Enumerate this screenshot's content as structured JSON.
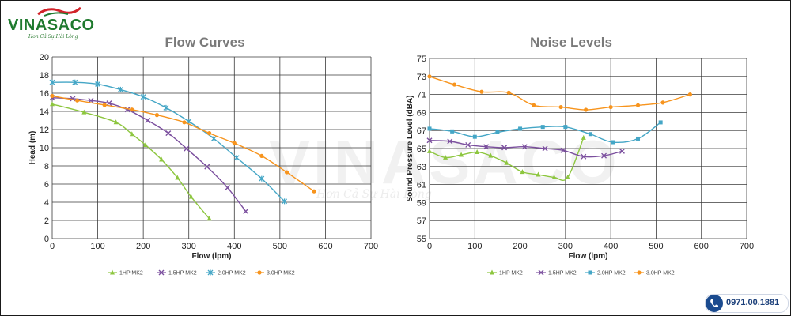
{
  "brand": {
    "name": "VINASACO",
    "slogan": "Hơn Cả Sự Hài Lòng",
    "phone": "0971.00.1881",
    "colors": {
      "green": "#1f7a2e",
      "red": "#d2232a",
      "navy": "#1b4b8f"
    }
  },
  "watermark": {
    "text": "VINASACO",
    "slogan": "Hơn Cả Sự Hài Lòng"
  },
  "chart_data": [
    {
      "type": "line",
      "title": "Flow Curves",
      "xlabel": "Flow (lpm)",
      "ylabel": "Head (m)",
      "xlim": [
        0,
        700
      ],
      "ylim": [
        0,
        20
      ],
      "xticks": [
        0,
        100,
        200,
        300,
        400,
        500,
        600,
        700
      ],
      "yticks": [
        0,
        2,
        4,
        6,
        8,
        10,
        12,
        14,
        16,
        18,
        20
      ],
      "grid": true,
      "legend_position": "bottom",
      "series": [
        {
          "name": "1HP MK2",
          "color": "#8dc63f",
          "marker": "triangle",
          "x": [
            0,
            70,
            140,
            175,
            205,
            240,
            275,
            305,
            345
          ],
          "y": [
            14.8,
            13.9,
            12.8,
            11.5,
            10.3,
            8.7,
            6.7,
            4.6,
            2.2
          ]
        },
        {
          "name": "1.5HP MK2",
          "color": "#7b4f9e",
          "marker": "x",
          "x": [
            0,
            45,
            85,
            125,
            165,
            210,
            255,
            295,
            340,
            385,
            425
          ],
          "y": [
            15.5,
            15.4,
            15.2,
            14.9,
            14.2,
            13.0,
            11.6,
            9.9,
            7.9,
            5.6,
            3.0
          ]
        },
        {
          "name": "2.0HP MK2",
          "color": "#44a6c6",
          "marker": "asterisk",
          "x": [
            0,
            50,
            100,
            150,
            200,
            250,
            300,
            355,
            405,
            460,
            510
          ],
          "y": [
            17.2,
            17.2,
            17.0,
            16.4,
            15.6,
            14.4,
            12.9,
            11.0,
            8.9,
            6.6,
            4.1
          ]
        },
        {
          "name": "3.0HP MK2",
          "color": "#f7941d",
          "marker": "circle",
          "x": [
            0,
            55,
            115,
            175,
            230,
            290,
            345,
            400,
            460,
            515,
            575
          ],
          "y": [
            15.7,
            15.2,
            14.7,
            14.2,
            13.6,
            12.8,
            11.6,
            10.5,
            9.1,
            7.3,
            5.2
          ]
        }
      ]
    },
    {
      "type": "line",
      "title": "Noise Levels",
      "xlabel": "Flow (lpm)",
      "ylabel": "Sound Pressure Level (dBA)",
      "xlim": [
        0,
        700
      ],
      "ylim": [
        55,
        75
      ],
      "xticks": [
        0,
        100,
        200,
        300,
        400,
        500,
        600,
        700
      ],
      "yticks": [
        55,
        57,
        59,
        61,
        63,
        65,
        67,
        69,
        71,
        73,
        75
      ],
      "grid": true,
      "legend_position": "bottom",
      "series": [
        {
          "name": "1HP MK2",
          "color": "#8dc63f",
          "marker": "triangle",
          "x": [
            0,
            35,
            70,
            105,
            135,
            170,
            205,
            240,
            275,
            305,
            340
          ],
          "y": [
            64.7,
            64.0,
            64.3,
            64.6,
            64.2,
            63.4,
            62.4,
            62.1,
            61.8,
            61.8,
            66.2
          ]
        },
        {
          "name": "1.5HP MK2",
          "color": "#7b4f9e",
          "marker": "x",
          "x": [
            0,
            45,
            85,
            125,
            165,
            210,
            255,
            295,
            340,
            385,
            425
          ],
          "y": [
            65.9,
            65.8,
            65.4,
            65.2,
            65.1,
            65.2,
            65.0,
            64.8,
            64.1,
            64.2,
            64.7
          ]
        },
        {
          "name": "2.0HP MK2",
          "color": "#44a6c6",
          "marker": "square",
          "x": [
            0,
            50,
            100,
            150,
            200,
            250,
            300,
            355,
            405,
            460,
            510
          ],
          "y": [
            67.2,
            66.9,
            66.3,
            66.8,
            67.2,
            67.4,
            67.4,
            66.6,
            65.7,
            66.1,
            67.9
          ]
        },
        {
          "name": "3.0HP MK2",
          "color": "#f7941d",
          "marker": "circle",
          "x": [
            0,
            55,
            115,
            175,
            230,
            290,
            345,
            400,
            460,
            515,
            575
          ],
          "y": [
            73.0,
            72.1,
            71.3,
            71.2,
            69.8,
            69.6,
            69.3,
            69.6,
            69.8,
            70.1,
            71.0
          ]
        }
      ]
    }
  ]
}
